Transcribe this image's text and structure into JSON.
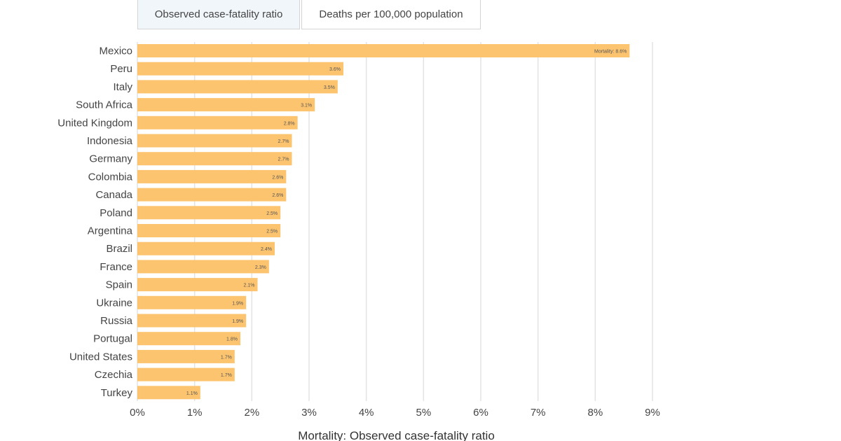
{
  "tabs": [
    {
      "label": "Observed case-fatality ratio",
      "active": true
    },
    {
      "label": "Deaths per 100,000 population",
      "active": false
    }
  ],
  "colors": {
    "bar": "#fdc46f",
    "grid": "#e3e3e3"
  },
  "chart_data": {
    "type": "bar",
    "orientation": "horizontal",
    "categories": [
      "Mexico",
      "Peru",
      "Italy",
      "South Africa",
      "United Kingdom",
      "Indonesia",
      "Germany",
      "Colombia",
      "Canada",
      "Poland",
      "Argentina",
      "Brazil",
      "France",
      "Spain",
      "Ukraine",
      "Russia",
      "Portugal",
      "United States",
      "Czechia",
      "Turkey"
    ],
    "values": [
      8.6,
      3.6,
      3.5,
      3.1,
      2.8,
      2.7,
      2.7,
      2.6,
      2.6,
      2.5,
      2.5,
      2.4,
      2.3,
      2.1,
      1.9,
      1.9,
      1.8,
      1.7,
      1.7,
      1.1
    ],
    "data_labels": [
      "Mortality: 8.6%",
      "3.6%",
      "3.5%",
      "3.1%",
      "2.8%",
      "2.7%",
      "2.7%",
      "2.6%",
      "2.6%",
      "2.5%",
      "2.5%",
      "2.4%",
      "2.3%",
      "2.1%",
      "1.9%",
      "1.9%",
      "1.8%",
      "1.7%",
      "1.7%",
      "1.1%"
    ],
    "xlim": [
      0,
      9
    ],
    "xticks": [
      "0%",
      "1%",
      "2%",
      "3%",
      "4%",
      "5%",
      "6%",
      "7%",
      "8%",
      "9%"
    ],
    "xlabel": "Mortality: Observed case-fatality ratio",
    "ylabel": "",
    "grid": true
  }
}
